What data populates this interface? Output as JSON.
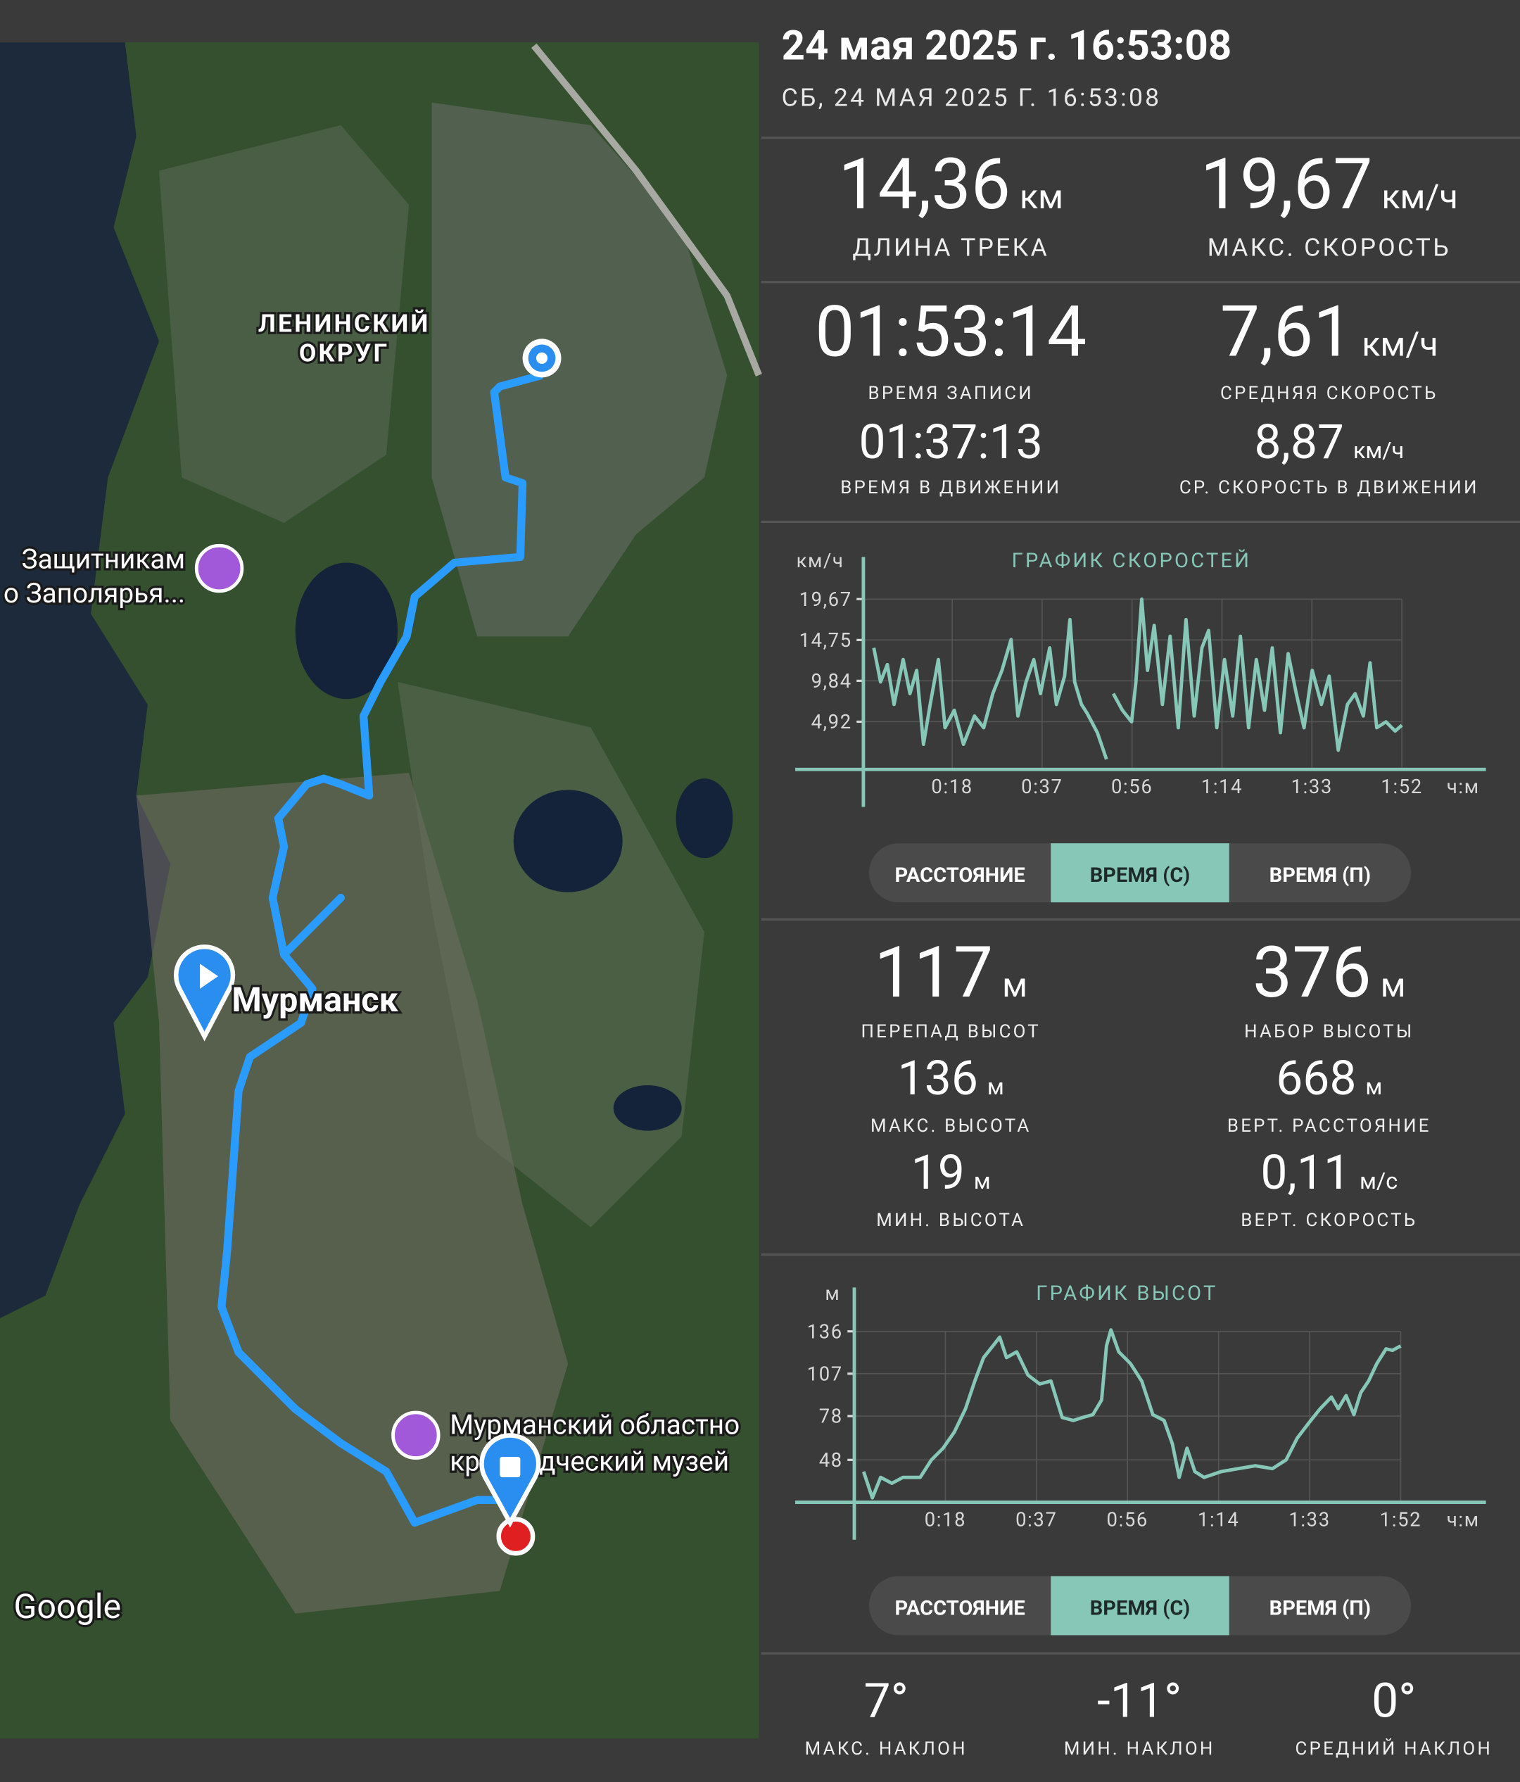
{
  "header": {
    "title": "24 мая 2025 г. 16:53:08",
    "subtitle": "СБ, 24 МАЯ 2025 Г. 16:53:08"
  },
  "map": {
    "labels": [
      "ЛЕНИНСКИЙ",
      "ОКРУГ",
      "Защитникам",
      "о Заполярья...",
      "Мурманск",
      "Мурманский областно",
      "краеведческий музей"
    ],
    "attribution": "Google"
  },
  "track_stats": [
    {
      "value": "14,36",
      "unit": "км",
      "label": "ДЛИНА ТРЕКА"
    },
    {
      "value": "19,67",
      "unit": "км/ч",
      "label": "МАКС. СКОРОСТЬ"
    },
    {
      "value": "01:53:14",
      "unit": null,
      "label": "ВРЕМЯ ЗАПИСИ"
    },
    {
      "value": "7,61",
      "unit": "км/ч",
      "label": "СРЕДНЯЯ СКОРОСТЬ"
    },
    {
      "value": "01:37:13",
      "unit": null,
      "label": "ВРЕМЯ В ДВИЖЕНИИ"
    },
    {
      "value": "8,87",
      "unit": "км/ч",
      "label": "СР. СКОРОСТЬ В ДВИЖЕНИИ"
    }
  ],
  "elevation_stats": [
    {
      "value": "117",
      "unit": "м",
      "label": "ПЕРЕПАД ВЫСОТ"
    },
    {
      "value": "376",
      "unit": "м",
      "label": "НАБОР ВЫСОТЫ"
    },
    {
      "value": "136",
      "unit": "м",
      "label": "МАКС. ВЫСОТА"
    },
    {
      "value": "668",
      "unit": "м",
      "label": "ВЕРТ. РАССТОЯНИЕ"
    },
    {
      "value": "19",
      "unit": "м",
      "label": "МИН. ВЫСОТА"
    },
    {
      "value": "0,11",
      "unit": "м/с",
      "label": "ВЕРТ. СКОРОСТЬ"
    }
  ],
  "slope_stats": [
    {
      "value": "7°",
      "label": "МАКС. НАКЛОН"
    },
    {
      "value": "-11°",
      "label": "МИН. НАКЛОН"
    },
    {
      "value": "0°",
      "label": "СРЕДНИЙ НАКЛОН"
    }
  ],
  "toggles": [
    [
      "РАССТОЯНИЕ",
      "ВРЕМЯ (С)",
      "ВРЕМЯ (П)"
    ],
    [
      "РАССТОЯНИЕ",
      "ВРЕМЯ (С)",
      "ВРЕМЯ (П)"
    ]
  ],
  "chart_data": [
    {
      "type": "line",
      "title": "ГРАФИК СКОРОСТЕЙ",
      "y_unit": "км/ч",
      "x_unit": "ч:м",
      "color": "#86c7b8",
      "grid": true,
      "xlim": [
        0,
        112
      ],
      "ylim": [
        0,
        24.6
      ],
      "xticks": [
        {
          "value": 18.67,
          "label": "0:18"
        },
        {
          "value": 37.33,
          "label": "0:37"
        },
        {
          "value": 56,
          "label": "0:56"
        },
        {
          "value": 74.67,
          "label": "1:14"
        },
        {
          "value": 93.33,
          "label": "1:33"
        },
        {
          "value": 112,
          "label": "1:52"
        }
      ],
      "yticks": [
        {
          "value": 4.92,
          "label": "4,92"
        },
        {
          "value": 9.84,
          "label": "9,84"
        },
        {
          "value": 14.75,
          "label": "14,75"
        },
        {
          "value": 19.67,
          "label": "19,67"
        }
      ],
      "x": [
        2.4,
        3.8,
        5.2,
        6.6,
        8.5,
        9.9,
        11.3,
        12.7,
        14.1,
        15.8,
        17.2,
        19.1,
        21.0,
        23.3,
        25.2,
        27.1,
        29.0,
        30.9,
        32.3,
        34.0,
        35.6,
        37.0,
        38.9,
        40.3,
        42.0,
        43.1,
        44.1,
        45.5,
        46.7,
        48.8,
        50.7,
        51.4,
        52.1,
        54.0,
        55.9,
        56.8,
        58.0,
        59.2,
        60.6,
        62.3,
        63.9,
        65.6,
        67.2,
        68.9,
        70.5,
        71.9,
        73.6,
        75.2,
        76.9,
        78.5,
        80.2,
        81.8,
        83.5,
        85.1,
        86.8,
        88.4,
        90.1,
        91.7,
        93.4,
        95.3,
        96.9,
        98.8,
        100.7,
        102.3,
        104.0,
        105.4,
        106.8,
        108.7,
        110.6,
        112.0
      ],
      "values": [
        13.8,
        9.7,
        11.8,
        7.0,
        12.4,
        8.3,
        11.1,
        2.2,
        7.0,
        12.4,
        4.2,
        6.3,
        2.2,
        5.6,
        4.2,
        8.3,
        11.1,
        14.8,
        5.6,
        9.7,
        12.4,
        8.3,
        13.8,
        7.0,
        10.4,
        17.2,
        9.7,
        7.0,
        5.9,
        3.6,
        0.4,
        null,
        8.3,
        6.3,
        4.9,
        9.7,
        19.67,
        11.1,
        16.5,
        7.0,
        15.2,
        4.2,
        17.2,
        5.6,
        13.8,
        15.9,
        4.2,
        12.4,
        5.6,
        15.2,
        4.2,
        12.4,
        6.3,
        13.8,
        3.6,
        13.1,
        8.3,
        4.2,
        11.1,
        7.0,
        10.4,
        1.5,
        7.0,
        8.3,
        5.6,
        12.0,
        4.2,
        4.9,
        3.8,
        4.5
      ]
    },
    {
      "type": "line",
      "title": "ГРАФИК ВЫСОТ",
      "y_unit": "м",
      "x_unit": "ч:м",
      "color": "#86c7b8",
      "grid": true,
      "xlim": [
        0,
        112
      ],
      "ylim": [
        19,
        166
      ],
      "xticks": [
        {
          "value": 18.67,
          "label": "0:18"
        },
        {
          "value": 37.33,
          "label": "0:37"
        },
        {
          "value": 56,
          "label": "0:56"
        },
        {
          "value": 74.67,
          "label": "1:14"
        },
        {
          "value": 93.33,
          "label": "1:33"
        },
        {
          "value": 112,
          "label": "1:52"
        }
      ],
      "yticks": [
        48,
        78,
        107,
        136
      ],
      "x": [
        1.9,
        3.7,
        5.4,
        7.7,
        10.0,
        13.5,
        15.8,
        18.2,
        20.5,
        22.8,
        24.7,
        26.5,
        28.4,
        29.8,
        31.2,
        33.3,
        35.6,
        38.0,
        40.3,
        42.6,
        44.9,
        46.8,
        48.9,
        50.7,
        51.7,
        52.6,
        54.2,
        56.6,
        58.9,
        61.2,
        63.5,
        65.2,
        66.6,
        68.2,
        69.8,
        71.7,
        75.2,
        78.7,
        82.2,
        85.7,
        88.5,
        90.8,
        93.1,
        95.5,
        97.8,
        99.2,
        100.8,
        102.4,
        103.8,
        105.4,
        107.1,
        109.0,
        110.3,
        112.0
      ],
      "values": [
        40,
        22,
        36,
        32,
        36,
        36,
        48,
        56,
        67,
        83,
        102,
        118,
        126,
        132,
        118,
        122,
        106,
        100,
        102,
        77,
        75,
        77,
        79,
        89,
        126,
        137,
        122,
        114,
        102,
        79,
        75,
        59,
        36,
        56,
        40,
        36,
        40,
        42,
        44,
        42,
        48,
        63,
        73,
        83,
        91,
        83,
        92,
        79,
        94,
        102,
        114,
        124,
        123,
        126
      ]
    }
  ]
}
